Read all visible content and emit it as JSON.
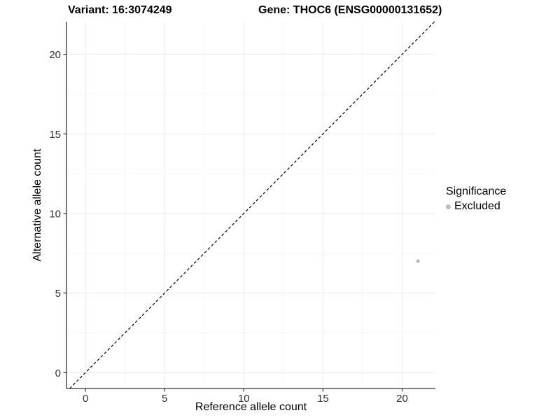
{
  "titles": {
    "variant": "Variant: 16:3074249",
    "gene": "Gene: THOC6 (ENSG00000131652)"
  },
  "legend": {
    "title": "Significance",
    "items": [
      {
        "label": "Excluded",
        "color": "#bebebe"
      }
    ]
  },
  "colors": {
    "background": "#ffffff",
    "axis_line": "#333333",
    "tick_mark": "#333333",
    "tick_label": "#303030",
    "grid_major": "#ebebeb",
    "grid_minor": "#f5f5f5",
    "dashed_line": "#000000",
    "point": "#bebebe"
  },
  "chart_data": {
    "type": "scatter",
    "title": "Variant: 16:3074249  /  Gene: THOC6 (ENSG00000131652)",
    "xlabel": "Reference allele count",
    "ylabel": "Alternative allele count",
    "xlim": [
      -1.2,
      22.1
    ],
    "ylim": [
      -1.0,
      22.05
    ],
    "x_ticks": [
      0,
      5,
      10,
      15,
      20
    ],
    "y_ticks": [
      0,
      5,
      10,
      15,
      20
    ],
    "x_minor": [
      2.5,
      7.5,
      12.5,
      17.5
    ],
    "y_minor": [
      2.5,
      7.5,
      12.5,
      17.5
    ],
    "grid": true,
    "legend_position": "right",
    "series": [
      {
        "name": "Excluded",
        "color": "#bebebe",
        "points": [
          {
            "x": 21,
            "y": 7
          }
        ]
      }
    ],
    "reference_line": {
      "type": "identity",
      "equation": "y = x",
      "style": "dashed",
      "color": "#000000"
    }
  }
}
